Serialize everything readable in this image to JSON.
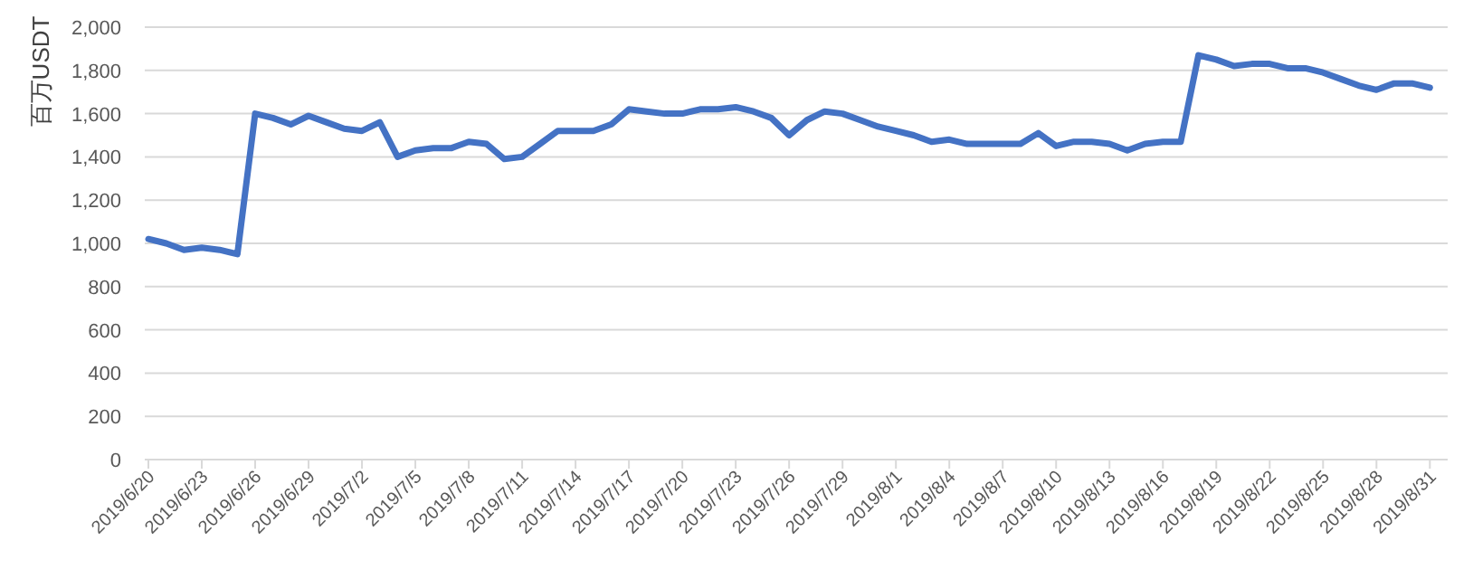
{
  "chart_data": {
    "type": "line",
    "ylabel": "百万USDT",
    "x": [
      "2019-06-20",
      "2019-06-21",
      "2019-06-22",
      "2019-06-23",
      "2019-06-24",
      "2019-06-25",
      "2019-06-26",
      "2019-06-27",
      "2019-06-28",
      "2019-06-29",
      "2019-06-30",
      "2019-07-01",
      "2019-07-02",
      "2019-07-03",
      "2019-07-04",
      "2019-07-05",
      "2019-07-06",
      "2019-07-07",
      "2019-07-08",
      "2019-07-09",
      "2019-07-10",
      "2019-07-11",
      "2019-07-12",
      "2019-07-13",
      "2019-07-14",
      "2019-07-15",
      "2019-07-16",
      "2019-07-17",
      "2019-07-18",
      "2019-07-19",
      "2019-07-20",
      "2019-07-21",
      "2019-07-22",
      "2019-07-23",
      "2019-07-24",
      "2019-07-25",
      "2019-07-26",
      "2019-07-27",
      "2019-07-28",
      "2019-07-29",
      "2019-07-30",
      "2019-07-31",
      "2019-08-01",
      "2019-08-02",
      "2019-08-03",
      "2019-08-04",
      "2019-08-05",
      "2019-08-06",
      "2019-08-07",
      "2019-08-08",
      "2019-08-09",
      "2019-08-10",
      "2019-08-11",
      "2019-08-12",
      "2019-08-13",
      "2019-08-14",
      "2019-08-15",
      "2019-08-16",
      "2019-08-17",
      "2019-08-18",
      "2019-08-19",
      "2019-08-20",
      "2019-08-21",
      "2019-08-22",
      "2019-08-23",
      "2019-08-24",
      "2019-08-25",
      "2019-08-26",
      "2019-08-27",
      "2019-08-28",
      "2019-08-29",
      "2019-08-30",
      "2019-08-31"
    ],
    "series": [
      {
        "color": "#4472c4",
        "values": [
          1020,
          1000,
          970,
          980,
          970,
          950,
          1600,
          1580,
          1550,
          1590,
          1560,
          1530,
          1520,
          1560,
          1400,
          1430,
          1440,
          1440,
          1470,
          1460,
          1390,
          1400,
          1460,
          1520,
          1520,
          1520,
          1550,
          1620,
          1610,
          1600,
          1600,
          1620,
          1620,
          1630,
          1610,
          1580,
          1500,
          1570,
          1610,
          1600,
          1570,
          1540,
          1520,
          1500,
          1470,
          1480,
          1460,
          1460,
          1460,
          1460,
          1510,
          1450,
          1470,
          1470,
          1460,
          1430,
          1460,
          1470,
          1470,
          1870,
          1850,
          1820,
          1830,
          1830,
          1810,
          1810,
          1790,
          1760,
          1730,
          1710,
          1740,
          1740,
          1720
        ]
      }
    ],
    "xlim": [
      "2019-06-20",
      "2019-09-01"
    ],
    "xticks": [
      {
        "value": "2019-06-20",
        "label": "2019/6/20"
      },
      {
        "value": "2019-06-23",
        "label": "2019/6/23"
      },
      {
        "value": "2019-06-26",
        "label": "2019/6/26"
      },
      {
        "value": "2019-06-29",
        "label": "2019/6/29"
      },
      {
        "value": "2019-07-02",
        "label": "2019/7/2"
      },
      {
        "value": "2019-07-05",
        "label": "2019/7/5"
      },
      {
        "value": "2019-07-08",
        "label": "2019/7/8"
      },
      {
        "value": "2019-07-11",
        "label": "2019/7/11"
      },
      {
        "value": "2019-07-14",
        "label": "2019/7/14"
      },
      {
        "value": "2019-07-17",
        "label": "2019/7/17"
      },
      {
        "value": "2019-07-20",
        "label": "2019/7/20"
      },
      {
        "value": "2019-07-23",
        "label": "2019/7/23"
      },
      {
        "value": "2019-07-26",
        "label": "2019/7/26"
      },
      {
        "value": "2019-07-29",
        "label": "2019/7/29"
      },
      {
        "value": "2019-08-01",
        "label": "2019/8/1"
      },
      {
        "value": "2019-08-04",
        "label": "2019/8/4"
      },
      {
        "value": "2019-08-07",
        "label": "2019/8/7"
      },
      {
        "value": "2019-08-10",
        "label": "2019/8/10"
      },
      {
        "value": "2019-08-13",
        "label": "2019/8/13"
      },
      {
        "value": "2019-08-16",
        "label": "2019/8/16"
      },
      {
        "value": "2019-08-19",
        "label": "2019/8/19"
      },
      {
        "value": "2019-08-22",
        "label": "2019/8/22"
      },
      {
        "value": "2019-08-25",
        "label": "2019/8/25"
      },
      {
        "value": "2019-08-28",
        "label": "2019/8/28"
      },
      {
        "value": "2019-08-31",
        "label": "2019/8/31"
      }
    ],
    "ylim": [
      0,
      2000
    ],
    "yticks": [
      0,
      200,
      400,
      600,
      800,
      {
        "value": 1000,
        "label": "1,000"
      },
      {
        "value": 1200,
        "label": "1,200"
      },
      {
        "value": 1400,
        "label": "1,400"
      },
      {
        "value": 1600,
        "label": "1,600"
      },
      {
        "value": 1800,
        "label": "1,800"
      },
      {
        "value": 2000,
        "label": "2,000"
      }
    ],
    "grid": "y",
    "marker": "none",
    "line_style": "solid"
  }
}
